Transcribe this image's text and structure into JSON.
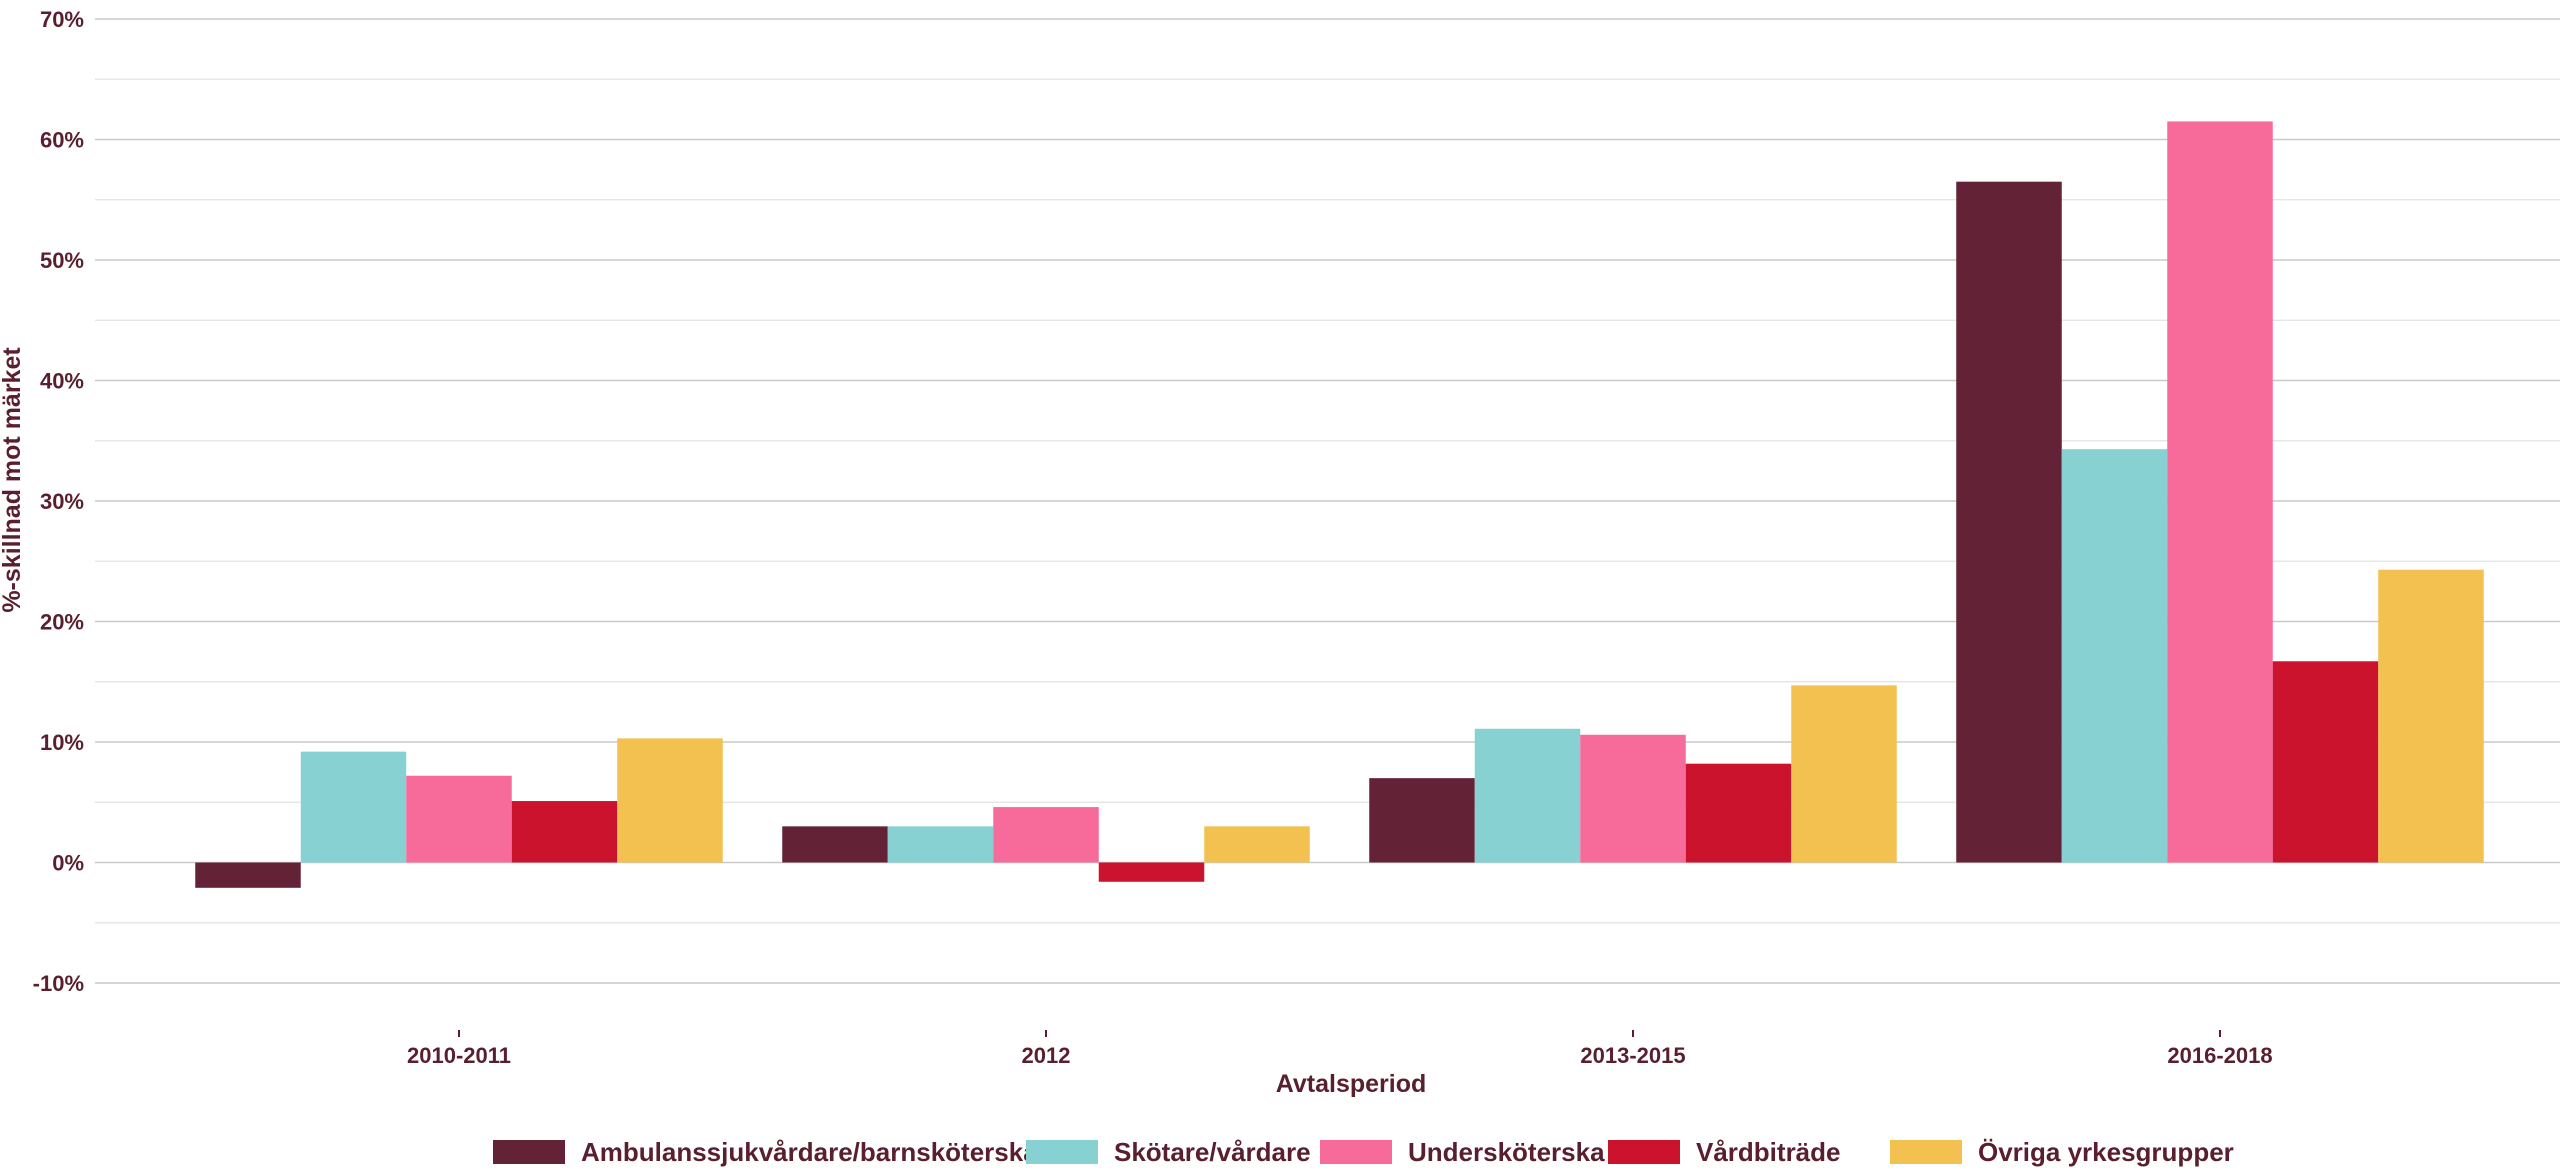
{
  "chart_data": {
    "type": "bar",
    "xlabel": "Avtalsperiod",
    "ylabel": "%-skillnad mot märket",
    "ylim": [
      -0.1,
      0.7
    ],
    "yticks": [
      -0.1,
      0,
      0.1,
      0.2,
      0.3,
      0.4,
      0.5,
      0.6,
      0.7
    ],
    "ytick_labels": [
      "-10%",
      "0%",
      "10%",
      "20%",
      "30%",
      "40%",
      "50%",
      "60%",
      "70%"
    ],
    "categories": [
      "2010-2011",
      "2012",
      "2013-2015",
      "2016-2018"
    ],
    "grid": true,
    "legend_position": "bottom",
    "series": [
      {
        "name": "Ambulanssjukvårdare/barnsköterska",
        "color": "#632235",
        "values": [
          -0.021,
          0.03,
          0.07,
          0.565
        ]
      },
      {
        "name": "Skötare/vårdare",
        "color": "#88d1d3",
        "values": [
          0.092,
          0.03,
          0.111,
          0.343
        ]
      },
      {
        "name": "Undersköterska",
        "color": "#f76b9b",
        "values": [
          0.072,
          0.046,
          0.106,
          0.615
        ]
      },
      {
        "name": "Vårdbiträde",
        "color": "#cc132d",
        "values": [
          0.051,
          -0.016,
          0.082,
          0.167
        ]
      },
      {
        "name": "Övriga yrkesgrupper",
        "color": "#f2c14f",
        "values": [
          0.103,
          0.03,
          0.147,
          0.243
        ]
      }
    ]
  }
}
